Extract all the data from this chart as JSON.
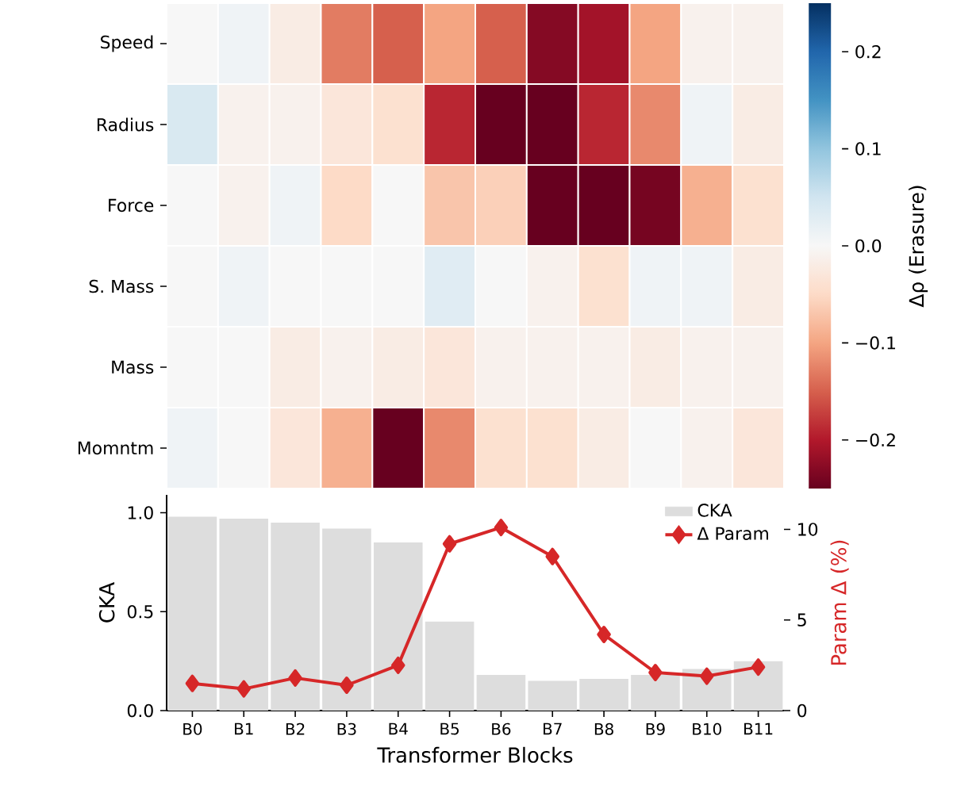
{
  "chart_data": [
    {
      "type": "heatmap",
      "categories": [
        null,
        null,
        null,
        null,
        null,
        null,
        null,
        null,
        null,
        null,
        null,
        null
      ],
      "y_categories": [
        "Speed",
        "Radius",
        "Force",
        "S. Mass",
        "Mass",
        "Momntm"
      ],
      "cells": [
        [
          0,
          0.01,
          -0.02,
          -0.13,
          -0.15,
          -0.1,
          -0.15,
          -0.23,
          -0.21,
          -0.1,
          -0.01,
          -0.01
        ],
        [
          0.04,
          -0.01,
          -0.01,
          -0.03,
          -0.04,
          -0.19,
          -0.25,
          -0.25,
          -0.19,
          -0.12,
          0.01,
          -0.02
        ],
        [
          0,
          -0.01,
          0.01,
          -0.05,
          0,
          -0.07,
          -0.06,
          -0.25,
          -0.25,
          -0.24,
          -0.09,
          -0.04
        ],
        [
          0,
          0.01,
          0,
          0,
          0,
          0.03,
          0,
          -0.01,
          -0.04,
          0.01,
          0.01,
          -0.02
        ],
        [
          0,
          0,
          -0.02,
          -0.01,
          -0.02,
          -0.03,
          -0.01,
          -0.01,
          -0.01,
          -0.02,
          -0.01,
          -0.01
        ],
        [
          0.01,
          0,
          -0.03,
          -0.09,
          -0.25,
          -0.12,
          -0.04,
          -0.04,
          -0.02,
          0,
          -0.01,
          -0.03
        ]
      ],
      "clabel": "Δρ (Erasure)",
      "clim": [
        -0.25,
        0.25
      ],
      "cticks": [
        {
          "value": -0.2,
          "label": "−0.2"
        },
        {
          "value": -0.1,
          "label": "−0.1"
        },
        {
          "value": 0,
          "label": "0.0"
        },
        0.1,
        0.2
      ],
      "tick_labels": "y"
    },
    {
      "type": "bar",
      "categories": [
        "B0",
        "B1",
        "B2",
        "B3",
        "B4",
        "B5",
        "B6",
        "B7",
        "B8",
        "B9",
        "B10",
        "B11"
      ],
      "xlabel": "Transformer Blocks",
      "ylabel": "CKA",
      "y2label": "Param Δ (%)",
      "ylim": [
        0,
        1.09
      ],
      "yticks": [
        {
          "value": 0,
          "label": "0.0"
        },
        {
          "value": 0.5,
          "label": "0.5"
        },
        {
          "value": 1,
          "label": "1.0"
        }
      ],
      "y2lim": [
        0,
        11.9
      ],
      "y2ticks": [
        0,
        5,
        10
      ],
      "series": [
        {
          "name": "CKA",
          "type": "bar",
          "color": "#dddddd",
          "values": [
            0.98,
            0.97,
            0.95,
            0.92,
            0.85,
            0.45,
            0.18,
            0.15,
            0.16,
            0.18,
            0.21,
            0.25
          ]
        },
        {
          "name": "Δ Param",
          "type": "line",
          "axis": "y2",
          "color": "#d62728",
          "marker": "diamond",
          "values": [
            1.5,
            1.2,
            1.8,
            1.4,
            2.5,
            9.2,
            10.1,
            8.5,
            4.2,
            2.1,
            1.9,
            2.4
          ]
        }
      ],
      "legend": "top right",
      "grid": false
    }
  ]
}
